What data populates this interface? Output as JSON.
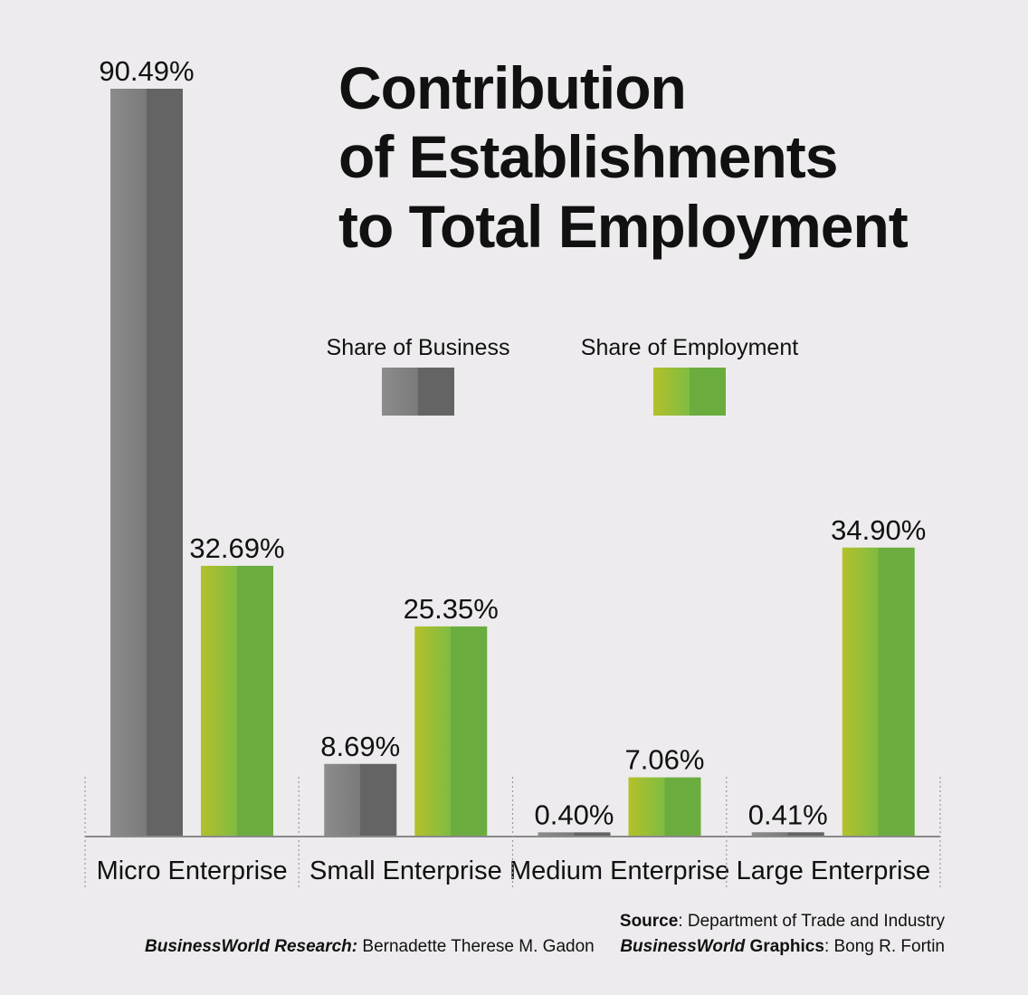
{
  "chart_data": {
    "type": "bar",
    "title_lines": [
      "Contribution",
      "of Establishments",
      "to Total Employment"
    ],
    "categories": [
      "Micro Enterprise",
      "Small Enterprise",
      "Medium Enterprise",
      "Large Enterprise"
    ],
    "series": [
      {
        "name": "Share of Business",
        "values": [
          90.49,
          8.69,
          0.4,
          0.41
        ],
        "labels": [
          "90.49%",
          "8.69%",
          "0.40%",
          "0.41%"
        ],
        "color": "#646464",
        "color_light": "#8c8c8c"
      },
      {
        "name": "Share of Employment",
        "values": [
          32.69,
          25.35,
          7.06,
          34.9
        ],
        "labels": [
          "32.69%",
          "25.35%",
          "7.06%",
          "34.90%"
        ],
        "color": "#6aad3e",
        "color_light": "#b4c02a"
      }
    ],
    "ylim": [
      0,
      100
    ],
    "grid": false,
    "legend_position": "center"
  },
  "credits": {
    "source_label": "Source",
    "source_text": ": Department of Trade and Industry",
    "research_label": "BusinessWorld Research:",
    "research_text": " Bernadette Therese M. Gadon",
    "graphics_label_italic": "BusinessWorld",
    "graphics_label_bold": " Graphics",
    "graphics_text": ": Bong R. Fortin"
  }
}
